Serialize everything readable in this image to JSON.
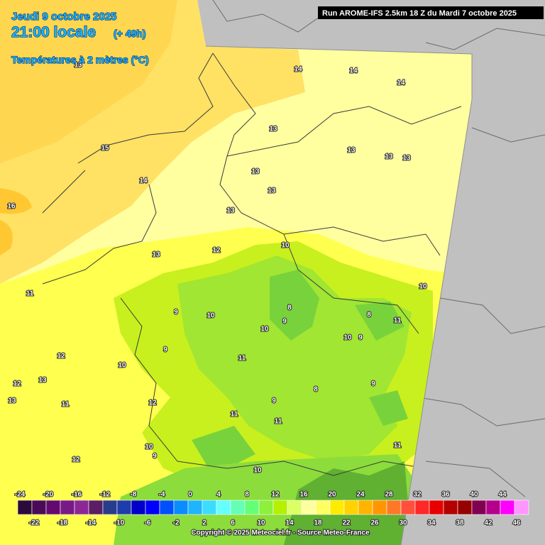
{
  "header": {
    "date": "Jeudi 9 octobre 2025",
    "time": "21:00 locale",
    "lead": "(+ 49h)",
    "parameter": "Températures à 2 mètres (°C)",
    "run": "Run AROME-IFS 2.5km 18 Z du Mardi 7 octobre 2025"
  },
  "map": {
    "contour_labels": [
      13,
      14,
      14,
      14,
      15,
      14,
      16,
      13,
      13,
      13,
      13,
      13,
      13,
      13,
      13,
      12,
      10,
      10,
      11,
      11,
      9,
      10,
      10,
      9,
      8,
      8,
      10,
      9,
      9,
      10,
      11,
      12,
      13,
      12,
      13,
      11,
      12,
      11,
      9,
      11,
      10,
      9,
      12,
      10,
      11,
      9,
      8
    ]
  },
  "legend": {
    "colors": [
      "#2b0b3a",
      "#4b0a57",
      "#640a6e",
      "#781a86",
      "#8c2896",
      "#5a1e64",
      "#283c8c",
      "#1e3caa",
      "#0000c8",
      "#0000ff",
      "#0050ff",
      "#0a8cff",
      "#1eb4ff",
      "#3cdcff",
      "#64ffff",
      "#64ffb4",
      "#64ff78",
      "#8cf03c",
      "#b4f000",
      "#dcff64",
      "#ffffa0",
      "#ffff64",
      "#ffeb00",
      "#ffd200",
      "#ffb400",
      "#ff9600",
      "#ff7828",
      "#ff503c",
      "#ff2828",
      "#e60000",
      "#b40000",
      "#960000",
      "#820050",
      "#b4008c",
      "#ff00ff",
      "#ff96ff"
    ],
    "labels_top": [
      -24,
      -20,
      -16,
      -12,
      -8,
      -4,
      0,
      4,
      8,
      12,
      16,
      20,
      24,
      28,
      32,
      36,
      40,
      44
    ],
    "labels_bottom": [
      -22,
      -18,
      -14,
      -10,
      -6,
      -2,
      2,
      6,
      10,
      14,
      18,
      22,
      26,
      30,
      34,
      38,
      42,
      46
    ]
  },
  "footer": {
    "copyright": "Copyright © 2025 Meteociel.fr - Source Meteo-France"
  }
}
